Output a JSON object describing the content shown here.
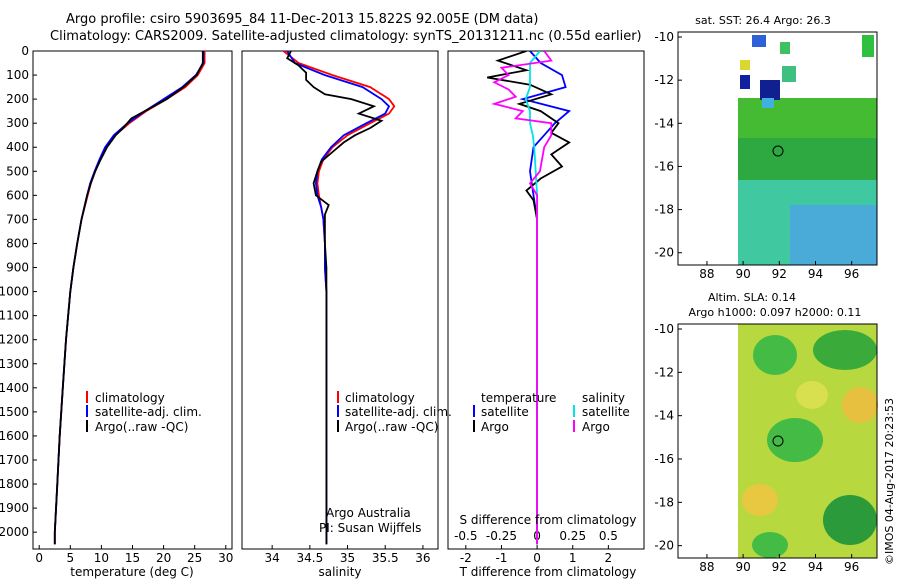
{
  "header": {
    "line1": "Argo profile: csiro 5903695_84 11-Dec-2013 15.822S 92.005E (DM data)",
    "line2": "Climatology: CARS2009. Satellite-adjusted climatology: synTS_20131211.nc (0.55d earlier)"
  },
  "map_top": {
    "title": "sat. SST: 26.4 Argo: 26.3",
    "xticks": [
      "88",
      "90",
      "92",
      "94",
      "96"
    ],
    "yticks": [
      "-10",
      "-12",
      "-14",
      "-16",
      "-18",
      "-20"
    ]
  },
  "map_bottom": {
    "title_line1": "Altim. SLA: 0.14",
    "title_line2": "Argo h1000: 0.097 h2000: 0.11",
    "xticks": [
      "88",
      "90",
      "92",
      "94",
      "96"
    ],
    "yticks": [
      "-10",
      "-12",
      "-14",
      "-16",
      "-18",
      "-20"
    ]
  },
  "credit": "©IMOS 04-Aug-2017 20:23:53",
  "colors": {
    "climatology": "#ff0000",
    "satellite": "#0000ff",
    "argo": "#000000",
    "salinity_diff_satellite": "#00e5e5",
    "salinity_diff_argo": "#ff00ff",
    "map_green": "#33bb44",
    "map_yellow": "#e8e060"
  },
  "chart_data": [
    {
      "type": "line",
      "name": "temperature",
      "xlabel": "temperature (deg C)",
      "ylabel": "",
      "xlim": [
        -1,
        31
      ],
      "ylim": [
        2070,
        0
      ],
      "xticks": [
        0,
        5,
        10,
        15,
        20,
        25,
        30
      ],
      "yticks": [
        0,
        100,
        200,
        300,
        400,
        500,
        600,
        700,
        800,
        900,
        1000,
        1100,
        1200,
        1300,
        1400,
        1500,
        1600,
        1700,
        1800,
        1900,
        2000
      ],
      "legend": [
        "climatology",
        "satellite-adj. clim.",
        "Argo(..raw -QC)"
      ],
      "series": [
        {
          "name": "climatology",
          "depth": [
            0,
            50,
            100,
            150,
            200,
            250,
            300,
            350,
            400,
            450,
            500,
            550,
            600,
            700,
            800,
            900,
            1000,
            1200,
            1400,
            1600,
            1800,
            2000,
            2050
          ],
          "values": [
            26.6,
            26.6,
            25.5,
            23.5,
            20.5,
            17.2,
            14.5,
            12.2,
            10.8,
            9.8,
            9.0,
            8.3,
            7.8,
            6.8,
            6.1,
            5.5,
            5.0,
            4.3,
            3.8,
            3.3,
            2.9,
            2.5,
            2.5
          ]
        },
        {
          "name": "satellite-adj. clim.",
          "depth": [
            0,
            50,
            100,
            150,
            200,
            250,
            300,
            350,
            400,
            450,
            500,
            550,
            600,
            700,
            800,
            900,
            1000,
            1200,
            1400,
            1600,
            1800,
            2000,
            2050
          ],
          "values": [
            26.4,
            26.4,
            25.2,
            23.0,
            20.0,
            17.0,
            14.2,
            12.0,
            10.6,
            9.7,
            8.9,
            8.2,
            7.7,
            6.8,
            6.1,
            5.5,
            5.0,
            4.3,
            3.8,
            3.3,
            2.9,
            2.5,
            2.5
          ]
        },
        {
          "name": "Argo(..raw -QC)",
          "depth": [
            0,
            50,
            100,
            150,
            200,
            250,
            280,
            320,
            350,
            400,
            450,
            500,
            550,
            600,
            700,
            800,
            900,
            1000,
            1200,
            1400,
            1600,
            1800,
            2000,
            2050
          ],
          "values": [
            26.3,
            26.3,
            25.3,
            23.2,
            20.5,
            17.0,
            14.8,
            13.5,
            12.3,
            10.9,
            9.9,
            9.0,
            8.3,
            7.7,
            6.8,
            6.1,
            5.5,
            5.0,
            4.3,
            3.8,
            3.3,
            2.9,
            2.5,
            2.5
          ]
        }
      ]
    },
    {
      "type": "line",
      "name": "salinity",
      "xlabel": "salinity",
      "ylabel": "",
      "xlim": [
        33.6,
        36.2
      ],
      "ylim": [
        2070,
        0
      ],
      "xticks": [
        34,
        34.5,
        35,
        35.5,
        36
      ],
      "legend": [
        "climatology",
        "satellite-adj. clim.",
        "Argo(..raw -QC)"
      ],
      "annotation": [
        "Argo Australia",
        "PI: Susan Wijffels"
      ],
      "series": [
        {
          "name": "climatology",
          "depth": [
            0,
            50,
            100,
            150,
            200,
            230,
            260,
            300,
            350,
            400,
            450,
            500,
            550,
            600,
            650,
            700,
            800,
            900,
            1000,
            1200,
            1500,
            2050
          ],
          "values": [
            34.15,
            34.35,
            34.8,
            35.3,
            35.55,
            35.62,
            35.55,
            35.3,
            35.0,
            34.8,
            34.68,
            34.62,
            34.6,
            34.62,
            34.65,
            34.68,
            34.7,
            34.7,
            34.72,
            34.72,
            34.72,
            34.72
          ]
        },
        {
          "name": "satellite-adj. clim.",
          "depth": [
            0,
            50,
            100,
            150,
            200,
            230,
            260,
            300,
            350,
            400,
            450,
            500,
            550,
            600,
            650,
            700,
            800,
            900,
            1000,
            1200,
            1500,
            2050
          ],
          "values": [
            34.2,
            34.3,
            34.7,
            35.2,
            35.45,
            35.55,
            35.5,
            35.25,
            34.95,
            34.78,
            34.66,
            34.6,
            34.58,
            34.6,
            34.65,
            34.68,
            34.7,
            34.7,
            34.72,
            34.72,
            34.72,
            34.72
          ]
        },
        {
          "name": "Argo(..raw -QC)",
          "depth": [
            0,
            30,
            60,
            90,
            120,
            150,
            180,
            200,
            230,
            260,
            290,
            320,
            350,
            380,
            420,
            460,
            500,
            550,
            600,
            640,
            680,
            720,
            800,
            900,
            1000,
            1200,
            1500,
            2050
          ],
          "values": [
            34.25,
            34.2,
            34.35,
            34.45,
            34.45,
            34.55,
            34.7,
            35.05,
            35.35,
            35.15,
            35.45,
            35.3,
            35.1,
            34.95,
            34.8,
            34.65,
            34.6,
            34.55,
            34.58,
            34.75,
            34.7,
            34.7,
            34.7,
            34.72,
            34.72,
            34.72,
            34.72,
            34.72
          ]
        }
      ]
    },
    {
      "type": "line",
      "name": "differences",
      "xlabel": "T difference from climatology",
      "xlabel_top": "S difference from climatology",
      "xlim": [
        -2.5,
        3.0
      ],
      "ylim": [
        2070,
        0
      ],
      "xticks_T": [
        -2,
        -1,
        0,
        1,
        2
      ],
      "xticks_S": [
        "-0.5",
        "-0.25",
        "0",
        "0.25",
        "0.5"
      ],
      "legend": {
        "temperature": [
          "satellite",
          "Argo"
        ],
        "salinity": [
          "satellite",
          "Argo"
        ]
      },
      "legend_headers": [
        "temperature",
        "salinity"
      ],
      "series": [
        {
          "name": "T satellite",
          "depth": [
            0,
            50,
            100,
            150,
            200,
            250,
            300,
            350,
            400,
            500,
            600,
            700,
            800,
            1000,
            1500,
            2050
          ],
          "values": [
            -0.2,
            0.1,
            0.7,
            0.8,
            -0.4,
            0.9,
            0.5,
            0.2,
            -0.1,
            -0.2,
            -0.1,
            0.0,
            0.0,
            0.0,
            0.0,
            0.0
          ]
        },
        {
          "name": "T Argo",
          "depth": [
            0,
            40,
            80,
            110,
            140,
            180,
            220,
            250,
            300,
            340,
            380,
            430,
            480,
            530,
            580,
            620,
            700,
            800,
            1000,
            1500,
            2050
          ],
          "values": [
            -0.3,
            -1.1,
            -0.3,
            -1.4,
            -0.2,
            0.4,
            -0.5,
            0.1,
            0.6,
            0.4,
            0.9,
            0.4,
            0.7,
            0.1,
            -0.3,
            -0.1,
            0.0,
            0.0,
            0.0,
            0.0,
            0.0
          ]
        },
        {
          "name": "S satellite",
          "depth": [
            0,
            50,
            100,
            150,
            200,
            250,
            300,
            350,
            400,
            500,
            600,
            700,
            800,
            1000,
            1500,
            2050
          ],
          "values": [
            0.02,
            -0.05,
            -0.05,
            -0.05,
            -0.08,
            -0.05,
            -0.05,
            -0.03,
            -0.02,
            -0.01,
            0.0,
            0.0,
            0.0,
            0.0,
            0.0,
            0.0
          ]
        },
        {
          "name": "S Argo",
          "depth": [
            0,
            40,
            70,
            100,
            130,
            160,
            190,
            220,
            250,
            280,
            300,
            350,
            400,
            500,
            550,
            600,
            650,
            800,
            1000,
            1500,
            2050
          ],
          "values": [
            0.05,
            0.1,
            -0.25,
            -0.2,
            -0.3,
            -0.2,
            -0.15,
            -0.3,
            -0.1,
            -0.15,
            0.1,
            0.1,
            0.05,
            0.02,
            -0.05,
            0.0,
            0.0,
            0.0,
            0.0,
            0.0,
            0.0
          ]
        }
      ]
    }
  ]
}
